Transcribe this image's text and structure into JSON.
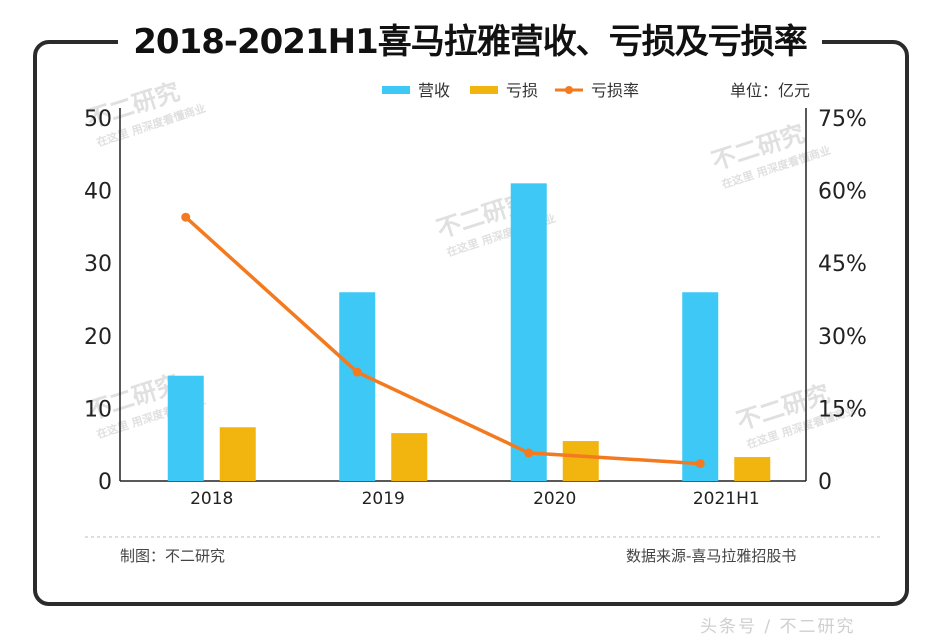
{
  "title": "2018-2021H1喜马拉雅营收、亏损及亏损率",
  "unit_label": "单位：亿元",
  "footer": {
    "left": "制图：不二研究",
    "right": "数据来源-喜马拉雅招股书"
  },
  "watermark": {
    "main": "不二研究",
    "sub": "在这里 用深度看懂商业"
  },
  "bottom_mark": "头条号 / 不二研究",
  "colors": {
    "revenue": "#3ec8f5",
    "loss": "#f2b40f",
    "loss_rate": "#f47a1f",
    "axis": "#222222"
  },
  "chart_data": {
    "type": "bar",
    "categories": [
      "2018",
      "2019",
      "2020",
      "2021H1"
    ],
    "series": [
      {
        "name": "营收",
        "type": "bar",
        "axis": "left",
        "values": [
          14.5,
          26.0,
          41.0,
          26.0
        ]
      },
      {
        "name": "亏损",
        "type": "bar",
        "axis": "left",
        "values": [
          7.4,
          6.6,
          5.5,
          3.3
        ]
      },
      {
        "name": "亏损率",
        "type": "line",
        "axis": "right",
        "values": [
          54.5,
          22.5,
          5.8,
          3.6
        ]
      }
    ],
    "y_left": {
      "ylim": [
        0,
        50
      ],
      "ticks": [
        "0",
        "10",
        "20",
        "30",
        "40",
        "50"
      ]
    },
    "y_right": {
      "ylim": [
        0,
        75
      ],
      "ticks": [
        "0",
        "15%",
        "30%",
        "45%",
        "60%",
        "75%"
      ]
    },
    "legend": [
      "营收",
      "亏损",
      "亏损率"
    ],
    "legend_position": "top"
  }
}
